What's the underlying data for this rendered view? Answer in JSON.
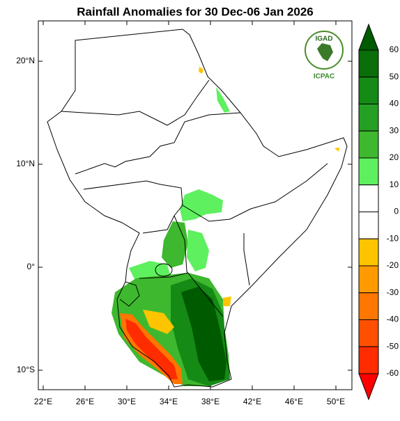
{
  "title": "Rainfall Anomalies for 30 Dec-06 Jan 2026",
  "map": {
    "xticks": [
      {
        "value": 22,
        "label": "22°E"
      },
      {
        "value": 26,
        "label": "26°E"
      },
      {
        "value": 30,
        "label": "30°E"
      },
      {
        "value": 34,
        "label": "34°E"
      },
      {
        "value": 38,
        "label": "38°E"
      },
      {
        "value": 42,
        "label": "42°E"
      },
      {
        "value": 46,
        "label": "46°E"
      },
      {
        "value": 50,
        "label": "50°E"
      }
    ],
    "yticks": [
      {
        "value": 20,
        "label": "20°N"
      },
      {
        "value": 10,
        "label": "10°N"
      },
      {
        "value": 0,
        "label": "0°"
      },
      {
        "value": -10,
        "label": "10°S"
      }
    ]
  },
  "colorbar": {
    "levels": [
      60,
      50,
      40,
      30,
      20,
      10,
      0,
      -10,
      -20,
      -30,
      -40,
      -50,
      -60
    ],
    "colors": [
      "#005a00",
      "#0a6e0a",
      "#158a15",
      "#25a025",
      "#3eb82e",
      "#5ef05e",
      "#ffffff",
      "#ffffff",
      "#ffc400",
      "#ff9a00",
      "#ff7600",
      "#ff5000",
      "#ff2c00",
      "#ff0000"
    ]
  },
  "logo": {
    "name": "IGAD",
    "subtitle": "ICPAC"
  }
}
